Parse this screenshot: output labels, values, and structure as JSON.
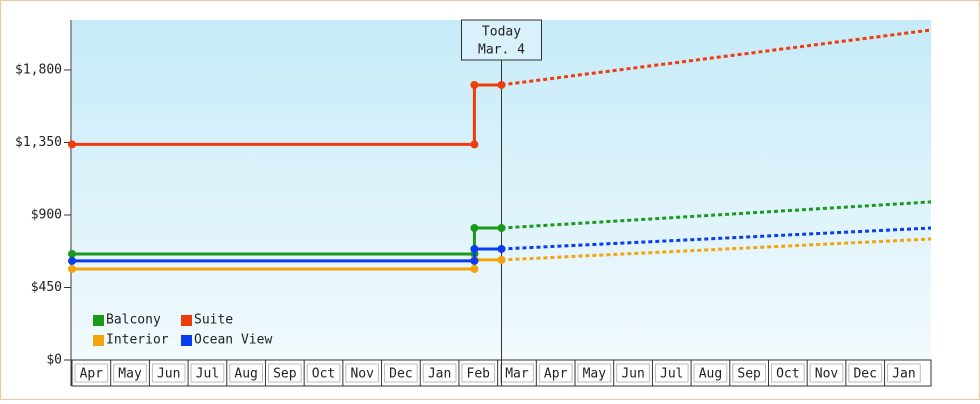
{
  "chart_data": {
    "type": "line",
    "categories": [
      "Apr",
      "May",
      "Jun",
      "Jul",
      "Aug",
      "Sep",
      "Oct",
      "Nov",
      "Dec",
      "Jan",
      "Feb",
      "Mar",
      "Apr",
      "May",
      "Jun",
      "Jul",
      "Aug",
      "Sep",
      "Oct",
      "Nov",
      "Dec",
      "Jan"
    ],
    "x": [
      0,
      10.4,
      10.4,
      11.1,
      22.2
    ],
    "xlim": [
      0,
      22.2
    ],
    "ylim": [
      0,
      2110
    ],
    "yticks": [
      {
        "value": 0,
        "label": "$0"
      },
      {
        "value": 450,
        "label": "$450"
      },
      {
        "value": 900,
        "label": "$900"
      },
      {
        "value": 1350,
        "label": "$1,350"
      },
      {
        "value": 1800,
        "label": "$1,800"
      }
    ],
    "today": {
      "x": 11.1,
      "label": "Today",
      "date": "Mar. 4"
    },
    "series": [
      {
        "name": "Balcony",
        "color": "#1a9a1a",
        "values": [
          658,
          658,
          819,
          819,
          981
        ]
      },
      {
        "name": "Suite",
        "color": "#f03c0a",
        "values": [
          1338,
          1338,
          1707,
          1707,
          2048
        ]
      },
      {
        "name": "Interior",
        "color": "#f5a30a",
        "values": [
          565,
          565,
          621,
          621,
          751
        ]
      },
      {
        "name": "Ocean View",
        "color": "#0a3cf0",
        "values": [
          615,
          615,
          689,
          689,
          819
        ]
      }
    ]
  }
}
